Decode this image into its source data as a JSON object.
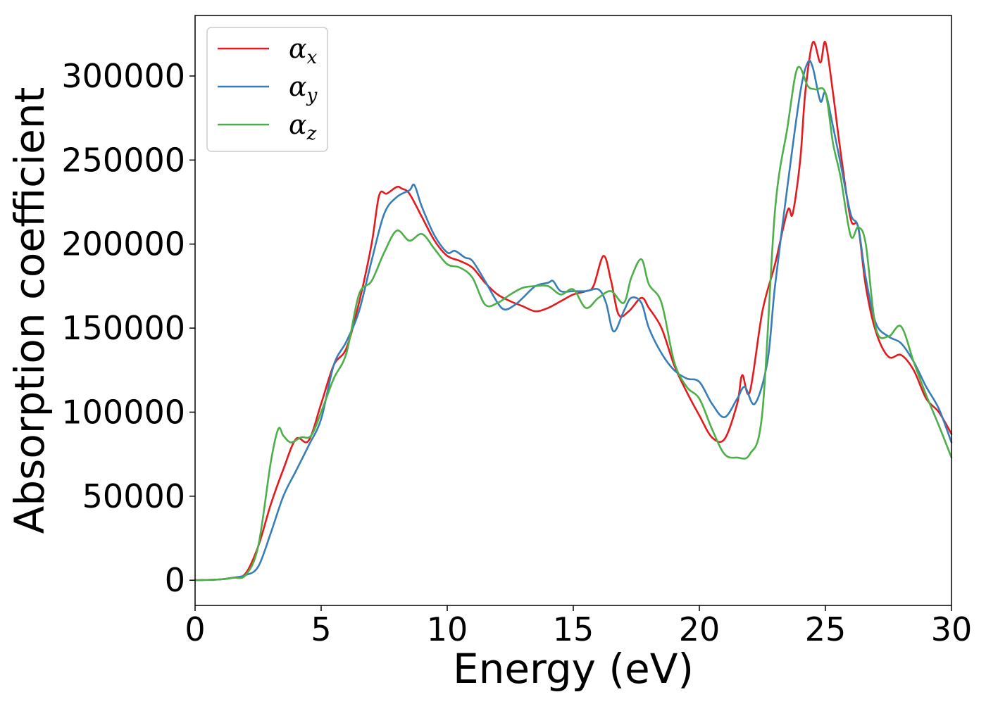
{
  "chart_data": {
    "type": "line",
    "title": "",
    "xlabel": "Energy (eV)",
    "ylabel": "Absorption coefficient",
    "xlim": [
      0,
      30
    ],
    "ylim": [
      -15000,
      336000
    ],
    "xticks": [
      0,
      5,
      10,
      15,
      20,
      25,
      30
    ],
    "yticks": [
      0,
      50000,
      100000,
      150000,
      200000,
      250000,
      300000
    ],
    "grid": false,
    "legend_position": "top-left",
    "series": [
      {
        "name": "α",
        "subscript": "x",
        "color": "#e41a1c",
        "x": [
          0,
          1,
          1.5,
          2,
          2.5,
          3,
          3.5,
          4,
          4.5,
          5,
          5.5,
          6,
          6.5,
          7,
          7.3,
          7.6,
          8,
          8.2,
          8.5,
          9,
          9.5,
          10,
          10.5,
          11,
          11.5,
          12,
          12.5,
          13,
          13.5,
          14,
          14.5,
          15,
          15.5,
          15.8,
          16.2,
          16.5,
          16.8,
          17.2,
          17.7,
          18,
          18.5,
          19,
          19.5,
          20,
          20.5,
          21,
          21.5,
          21.7,
          22,
          22.5,
          23,
          23.5,
          23.7,
          24,
          24.2,
          24.5,
          24.8,
          25,
          25.3,
          25.6,
          26,
          26.3,
          26.6,
          27,
          27.5,
          28,
          28.5,
          29,
          29.5,
          30
        ],
        "y": [
          0,
          500,
          1500,
          4000,
          20000,
          45000,
          66000,
          84000,
          83000,
          105000,
          128000,
          138000,
          165000,
          200000,
          229000,
          230000,
          234000,
          233000,
          230000,
          216000,
          202000,
          193000,
          190000,
          186000,
          177000,
          170000,
          166000,
          163000,
          160000,
          162000,
          166000,
          170000,
          172000,
          175000,
          193000,
          178000,
          158000,
          160000,
          168000,
          162000,
          150000,
          128000,
          112000,
          98000,
          85000,
          84000,
          105000,
          122000,
          112000,
          160000,
          188000,
          220000,
          218000,
          250000,
          290000,
          320000,
          308000,
          320000,
          290000,
          255000,
          215000,
          210000,
          175000,
          148000,
          133000,
          134000,
          125000,
          108000,
          100000,
          87000
        ]
      },
      {
        "name": "α",
        "subscript": "y",
        "color": "#377eb8",
        "x": [
          0,
          1,
          1.5,
          2,
          2.5,
          3,
          3.5,
          4,
          4.5,
          5,
          5.5,
          6,
          6.5,
          7,
          7.5,
          8,
          8.5,
          8.7,
          9,
          9.5,
          10,
          10.3,
          10.7,
          11,
          11.5,
          12,
          12.3,
          12.7,
          13,
          13.5,
          14,
          14.2,
          14.5,
          15,
          15.5,
          16,
          16.3,
          16.6,
          17,
          17.3,
          17.7,
          18,
          18.5,
          19,
          19.5,
          20,
          20.5,
          21,
          21.5,
          21.8,
          22.2,
          22.7,
          23,
          23.5,
          24,
          24.3,
          24.5,
          24.8,
          25,
          25.3,
          25.6,
          26,
          26.3,
          26.6,
          27,
          27.5,
          28,
          28.5,
          29,
          29.5,
          30
        ],
        "y": [
          0,
          500,
          1500,
          3000,
          8000,
          28000,
          50000,
          65000,
          80000,
          96000,
          128000,
          142000,
          160000,
          190000,
          218000,
          228000,
          232000,
          235000,
          222000,
          205000,
          195000,
          196000,
          192000,
          190000,
          178000,
          165000,
          161000,
          164000,
          168000,
          175000,
          177000,
          178000,
          172000,
          172000,
          172000,
          173000,
          165000,
          148000,
          160000,
          168000,
          165000,
          150000,
          135000,
          125000,
          120000,
          118000,
          105000,
          97000,
          108000,
          115000,
          105000,
          130000,
          175000,
          235000,
          290000,
          308000,
          305000,
          285000,
          290000,
          270000,
          248000,
          218000,
          210000,
          180000,
          153000,
          145000,
          141000,
          130000,
          115000,
          102000,
          82000
        ]
      },
      {
        "name": "α",
        "subscript": "z",
        "color": "#4daf4a",
        "x": [
          0,
          1,
          1.5,
          2,
          2.5,
          3,
          3.3,
          3.5,
          3.8,
          4.2,
          4.6,
          5,
          5.5,
          6,
          6.5,
          7,
          7.5,
          8,
          8.5,
          9,
          9.5,
          10,
          10.5,
          11,
          11.5,
          12,
          12.5,
          13,
          13.5,
          14,
          14.5,
          15,
          15.5,
          16,
          16.5,
          17,
          17.3,
          17.7,
          18,
          18.5,
          19,
          19.5,
          20,
          20.5,
          21,
          21.5,
          22,
          22.5,
          23,
          23.5,
          23.8,
          24,
          24.3,
          24.6,
          25,
          25.3,
          25.6,
          26,
          26.3,
          26.6,
          27,
          27.5,
          28,
          28.5,
          29,
          29.5,
          30
        ],
        "y": [
          0,
          500,
          1500,
          3000,
          20000,
          70000,
          90000,
          86000,
          82000,
          85000,
          86000,
          100000,
          120000,
          135000,
          170000,
          178000,
          195000,
          208000,
          202000,
          206000,
          197000,
          188000,
          186000,
          180000,
          164000,
          165000,
          170000,
          174000,
          175000,
          175000,
          170000,
          173000,
          162000,
          168000,
          172000,
          165000,
          180000,
          191000,
          176000,
          165000,
          130000,
          115000,
          108000,
          90000,
          75000,
          73000,
          75000,
          100000,
          220000,
          270000,
          300000,
          305000,
          294000,
          292000,
          290000,
          260000,
          240000,
          205000,
          210000,
          200000,
          150000,
          145000,
          151000,
          130000,
          110000,
          92000,
          73000
        ]
      }
    ]
  }
}
